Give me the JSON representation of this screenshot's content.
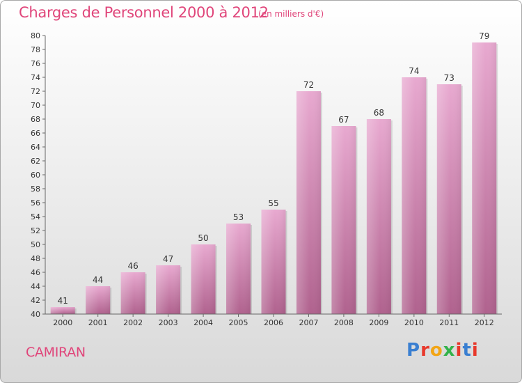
{
  "header": {
    "title": "Charges de Personnel 2000 à 2012",
    "subtitle": "(en milliers d'€)"
  },
  "footer": {
    "commune": "CAMIRAN",
    "logo": "Proxiti",
    "logo_colors": [
      "#3a7fd1",
      "#e8392c",
      "#f2a516",
      "#33b24a",
      "#e8392c",
      "#3a7fd1",
      "#e8392c"
    ]
  },
  "colors": {
    "accent": "#e0457a",
    "bar_top": "#e8a9d0",
    "bar_bottom": "#b0628e"
  },
  "chart_data": {
    "type": "bar",
    "title": "Charges de Personnel 2000 à 2012",
    "subtitle": "(en milliers d'€)",
    "categories": [
      "2000",
      "2001",
      "2002",
      "2003",
      "2004",
      "2005",
      "2006",
      "2007",
      "2008",
      "2009",
      "2010",
      "2011",
      "2012"
    ],
    "values": [
      41,
      44,
      46,
      47,
      50,
      53,
      55,
      72,
      67,
      68,
      74,
      73,
      79
    ],
    "ylim": [
      40,
      80
    ],
    "yticks": [
      40,
      42,
      44,
      46,
      48,
      50,
      52,
      54,
      56,
      58,
      60,
      62,
      64,
      66,
      68,
      70,
      72,
      74,
      76,
      78,
      80
    ],
    "grid": false,
    "legend": "none",
    "xlabel": "",
    "ylabel": ""
  }
}
